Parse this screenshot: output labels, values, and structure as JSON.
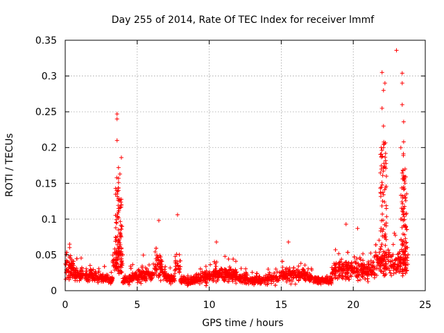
{
  "chart_data": {
    "type": "scatter",
    "title": "Day 255 of 2014, Rate Of TEC Index for receiver lmmf",
    "xlabel": "GPS time / hours",
    "ylabel": "ROTI / TECUs",
    "xlim": [
      0,
      25
    ],
    "ylim": [
      0,
      0.35
    ],
    "xticks": [
      0,
      5,
      10,
      15,
      20,
      25
    ],
    "xtick_labels": [
      "0",
      "5",
      "10",
      "15",
      "20",
      "25"
    ],
    "yticks": [
      0,
      0.05,
      0.1,
      0.15,
      0.2,
      0.25,
      0.3,
      0.35
    ],
    "ytick_labels": [
      "0",
      "0.05",
      "0.1",
      "0.15",
      "0.2",
      "0.25",
      "0.3",
      "0.35"
    ],
    "grid": true,
    "marker": "plus",
    "color": "#ff0000",
    "data_x_range": [
      0,
      23.8
    ],
    "series": [
      {
        "name": "ROTI",
        "notable_points": [
          {
            "x": 3.6,
            "y": 0.247
          },
          {
            "x": 3.6,
            "y": 0.24
          },
          {
            "x": 3.6,
            "y": 0.21
          },
          {
            "x": 3.9,
            "y": 0.186
          },
          {
            "x": 3.8,
            "y": 0.163
          },
          {
            "x": 3.7,
            "y": 0.172
          },
          {
            "x": 3.7,
            "y": 0.14
          },
          {
            "x": 3.9,
            "y": 0.12
          },
          {
            "x": 6.5,
            "y": 0.098
          },
          {
            "x": 7.8,
            "y": 0.106
          },
          {
            "x": 10.5,
            "y": 0.068
          },
          {
            "x": 15.5,
            "y": 0.068
          },
          {
            "x": 19.5,
            "y": 0.093
          },
          {
            "x": 20.3,
            "y": 0.087
          },
          {
            "x": 22.0,
            "y": 0.305
          },
          {
            "x": 22.2,
            "y": 0.29
          },
          {
            "x": 22.1,
            "y": 0.28
          },
          {
            "x": 22.0,
            "y": 0.255
          },
          {
            "x": 22.1,
            "y": 0.23
          },
          {
            "x": 22.1,
            "y": 0.2
          },
          {
            "x": 22.3,
            "y": 0.16
          },
          {
            "x": 23.0,
            "y": 0.336
          },
          {
            "x": 23.4,
            "y": 0.304
          },
          {
            "x": 23.4,
            "y": 0.29
          },
          {
            "x": 23.4,
            "y": 0.26
          },
          {
            "x": 23.5,
            "y": 0.236
          },
          {
            "x": 23.5,
            "y": 0.208
          },
          {
            "x": 23.6,
            "y": 0.17
          },
          {
            "x": 23.5,
            "y": 0.145
          },
          {
            "x": 23.3,
            "y": 0.1
          }
        ]
      }
    ]
  }
}
